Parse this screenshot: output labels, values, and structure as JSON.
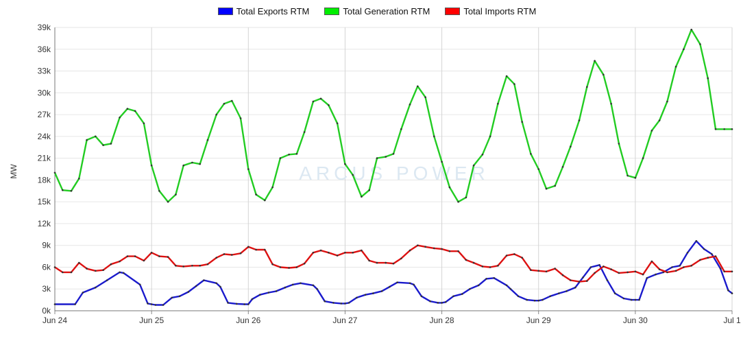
{
  "chart_data": {
    "type": "line",
    "title": "",
    "xlabel": "",
    "ylabel": "MW",
    "legend_position": "top-center",
    "grid": true,
    "ylim": [
      0,
      39000
    ],
    "y_ticks": [
      0,
      3000,
      6000,
      9000,
      12000,
      15000,
      18000,
      21000,
      24000,
      27000,
      30000,
      33000,
      36000,
      39000
    ],
    "y_tick_labels": [
      "0k",
      "3k",
      "6k",
      "9k",
      "12k",
      "15k",
      "18k",
      "21k",
      "24k",
      "27k",
      "30k",
      "33k",
      "36k",
      "39k"
    ],
    "x_tick_labels": [
      "Jun 24",
      "Jun 25",
      "Jun 26",
      "Jun 27",
      "Jun 28",
      "Jun 29",
      "Jun 30",
      "Jul 1"
    ],
    "x_range_days": [
      0,
      7
    ],
    "watermark": "ARCUS POWER",
    "series": [
      {
        "name": "Total Exports RTM",
        "color": "#1a1acc",
        "legend_color": "#0000ff",
        "x": [
          0,
          0.21,
          0.29,
          0.42,
          0.54,
          0.67,
          0.71,
          0.88,
          0.96,
          1.0,
          1.04,
          1.12,
          1.21,
          1.29,
          1.38,
          1.46,
          1.54,
          1.67,
          1.71,
          1.79,
          1.88,
          1.96,
          2.0,
          2.04,
          2.12,
          2.21,
          2.29,
          2.38,
          2.46,
          2.54,
          2.67,
          2.71,
          2.79,
          2.88,
          2.96,
          3.0,
          3.04,
          3.12,
          3.21,
          3.29,
          3.38,
          3.46,
          3.54,
          3.67,
          3.71,
          3.79,
          3.88,
          3.96,
          4.0,
          4.04,
          4.12,
          4.21,
          4.29,
          4.38,
          4.46,
          4.54,
          4.67,
          4.71,
          4.79,
          4.88,
          4.96,
          5.0,
          5.04,
          5.12,
          5.21,
          5.29,
          5.38,
          5.46,
          5.54,
          5.63,
          5.71,
          5.79,
          5.88,
          5.96,
          6.0,
          6.04,
          6.12,
          6.21,
          6.29,
          6.38,
          6.46,
          6.54,
          6.63,
          6.71,
          6.79,
          6.88,
          6.96,
          7.0
        ],
        "values": [
          900,
          900,
          2500,
          3200,
          4200,
          5300,
          5200,
          3600,
          1000,
          900,
          800,
          800,
          1800,
          2000,
          2600,
          3400,
          4200,
          3800,
          3300,
          1100,
          950,
          900,
          900,
          1600,
          2200,
          2500,
          2700,
          3200,
          3600,
          3800,
          3500,
          3000,
          1300,
          1100,
          1000,
          1000,
          1100,
          1800,
          2200,
          2400,
          2700,
          3300,
          3900,
          3800,
          3600,
          2000,
          1300,
          1100,
          1100,
          1200,
          2000,
          2300,
          3000,
          3500,
          4400,
          4500,
          3500,
          3000,
          2000,
          1500,
          1400,
          1400,
          1500,
          2000,
          2400,
          2700,
          3200,
          4600,
          6000,
          6300,
          4200,
          2400,
          1700,
          1500,
          1500,
          1500,
          4500,
          5000,
          5300,
          6000,
          6200,
          8000,
          9600,
          8500,
          7800,
          5800,
          2800,
          2400
        ]
      },
      {
        "name": "Total Generation RTM",
        "color": "#22cc22",
        "legend_color": "#00ee00",
        "x": [
          0,
          0.08,
          0.17,
          0.25,
          0.33,
          0.42,
          0.5,
          0.58,
          0.67,
          0.75,
          0.83,
          0.92,
          1.0,
          1.08,
          1.17,
          1.25,
          1.33,
          1.42,
          1.5,
          1.58,
          1.67,
          1.75,
          1.83,
          1.92,
          2.0,
          2.08,
          2.17,
          2.25,
          2.33,
          2.42,
          2.5,
          2.58,
          2.67,
          2.75,
          2.83,
          2.92,
          3.0,
          3.08,
          3.17,
          3.25,
          3.33,
          3.42,
          3.5,
          3.58,
          3.67,
          3.75,
          3.83,
          3.92,
          4.0,
          4.08,
          4.17,
          4.25,
          4.33,
          4.42,
          4.5,
          4.58,
          4.67,
          4.75,
          4.83,
          4.92,
          5.0,
          5.08,
          5.17,
          5.25,
          5.33,
          5.42,
          5.5,
          5.58,
          5.67,
          5.75,
          5.83,
          5.92,
          6.0,
          6.08,
          6.17,
          6.25,
          6.33,
          6.42,
          6.5,
          6.58,
          6.67,
          6.75,
          6.83,
          6.92,
          7.0
        ],
        "values": [
          19000,
          16600,
          16500,
          18200,
          23500,
          24000,
          22800,
          23000,
          26600,
          27800,
          27500,
          25800,
          20000,
          16500,
          15000,
          16000,
          20000,
          20400,
          20200,
          23500,
          27000,
          28500,
          28900,
          26500,
          19500,
          16000,
          15200,
          17000,
          21000,
          21500,
          21600,
          24600,
          28800,
          29200,
          28300,
          25800,
          20200,
          18700,
          15700,
          16600,
          21000,
          21200,
          21600,
          25000,
          28400,
          30900,
          29400,
          24000,
          20500,
          17000,
          15000,
          15600,
          20000,
          21500,
          24000,
          28500,
          32300,
          31200,
          26000,
          21600,
          19500,
          16800,
          17200,
          19800,
          22600,
          26200,
          30800,
          34400,
          32500,
          28500,
          23000,
          18600,
          18300,
          21000,
          24800,
          26200,
          28800,
          33600,
          36000,
          38700,
          36700,
          32000,
          25000,
          25000,
          25000
        ]
      },
      {
        "name": "Total Imports RTM",
        "color": "#dd1111",
        "legend_color": "#ff0000",
        "x": [
          0,
          0.08,
          0.17,
          0.25,
          0.33,
          0.42,
          0.5,
          0.58,
          0.67,
          0.75,
          0.83,
          0.92,
          1.0,
          1.08,
          1.17,
          1.25,
          1.33,
          1.42,
          1.5,
          1.58,
          1.67,
          1.75,
          1.83,
          1.92,
          2.0,
          2.08,
          2.17,
          2.25,
          2.33,
          2.42,
          2.5,
          2.58,
          2.67,
          2.75,
          2.83,
          2.92,
          3.0,
          3.08,
          3.17,
          3.25,
          3.33,
          3.42,
          3.5,
          3.58,
          3.67,
          3.75,
          3.83,
          3.92,
          4.0,
          4.08,
          4.17,
          4.25,
          4.33,
          4.42,
          4.5,
          4.58,
          4.67,
          4.75,
          4.83,
          4.92,
          5.0,
          5.08,
          5.17,
          5.25,
          5.33,
          5.42,
          5.5,
          5.58,
          5.67,
          5.75,
          5.83,
          5.92,
          6.0,
          6.08,
          6.17,
          6.25,
          6.33,
          6.42,
          6.5,
          6.58,
          6.67,
          6.75,
          6.83,
          6.92,
          7.0
        ],
        "values": [
          6000,
          5300,
          5300,
          6600,
          5800,
          5500,
          5600,
          6400,
          6800,
          7500,
          7500,
          6900,
          8000,
          7500,
          7400,
          6200,
          6100,
          6200,
          6200,
          6400,
          7300,
          7800,
          7700,
          7900,
          8800,
          8400,
          8400,
          6400,
          6000,
          5900,
          6000,
          6500,
          8000,
          8300,
          8000,
          7600,
          8000,
          8000,
          8300,
          6900,
          6600,
          6600,
          6500,
          7200,
          8300,
          9000,
          8800,
          8600,
          8500,
          8200,
          8200,
          7000,
          6600,
          6100,
          6000,
          6200,
          7600,
          7800,
          7300,
          5600,
          5500,
          5400,
          5800,
          4900,
          4200,
          4000,
          4100,
          5200,
          6100,
          5700,
          5200,
          5300,
          5400,
          5000,
          6800,
          5700,
          5300,
          5500,
          6000,
          6200,
          7000,
          7300,
          7500,
          5400,
          5400
        ]
      }
    ]
  }
}
